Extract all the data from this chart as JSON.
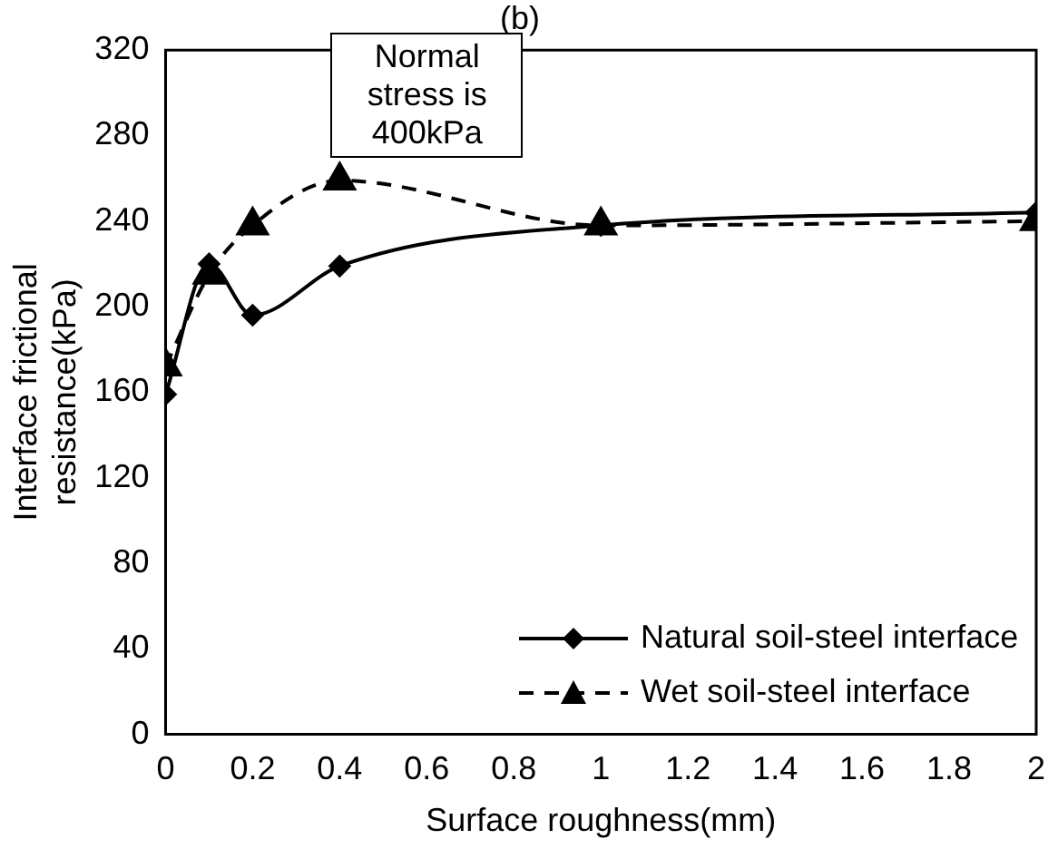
{
  "chart_data": {
    "type": "line",
    "title": "(b)",
    "xlabel": "Surface roughness(mm)",
    "ylabel": "Interface frictional resistance(kPa)",
    "x": [
      0,
      0.1,
      0.2,
      0.4,
      1,
      2
    ],
    "series": [
      {
        "name": "Natural soil-steel interface",
        "color": "#000000",
        "marker": "diamond",
        "line_style": "solid",
        "values": [
          159,
          220,
          196,
          219,
          238,
          244
        ]
      },
      {
        "name": "Wet soil-steel interface",
        "color": "#000000",
        "marker": "triangle",
        "line_style": "dashed",
        "values": [
          172,
          215,
          238,
          259,
          238,
          240
        ]
      }
    ],
    "xlim": [
      0,
      2
    ],
    "xticks": [
      0,
      0.2,
      0.4,
      0.6,
      0.8,
      1,
      1.2,
      1.4,
      1.6,
      1.8,
      2
    ],
    "ylim": [
      0,
      320
    ],
    "yticks": [
      0,
      40,
      80,
      120,
      160,
      200,
      240,
      280,
      320
    ],
    "grid": false,
    "legend": "bottom right",
    "annotations": [
      "Normal stress is 400kPa"
    ]
  }
}
